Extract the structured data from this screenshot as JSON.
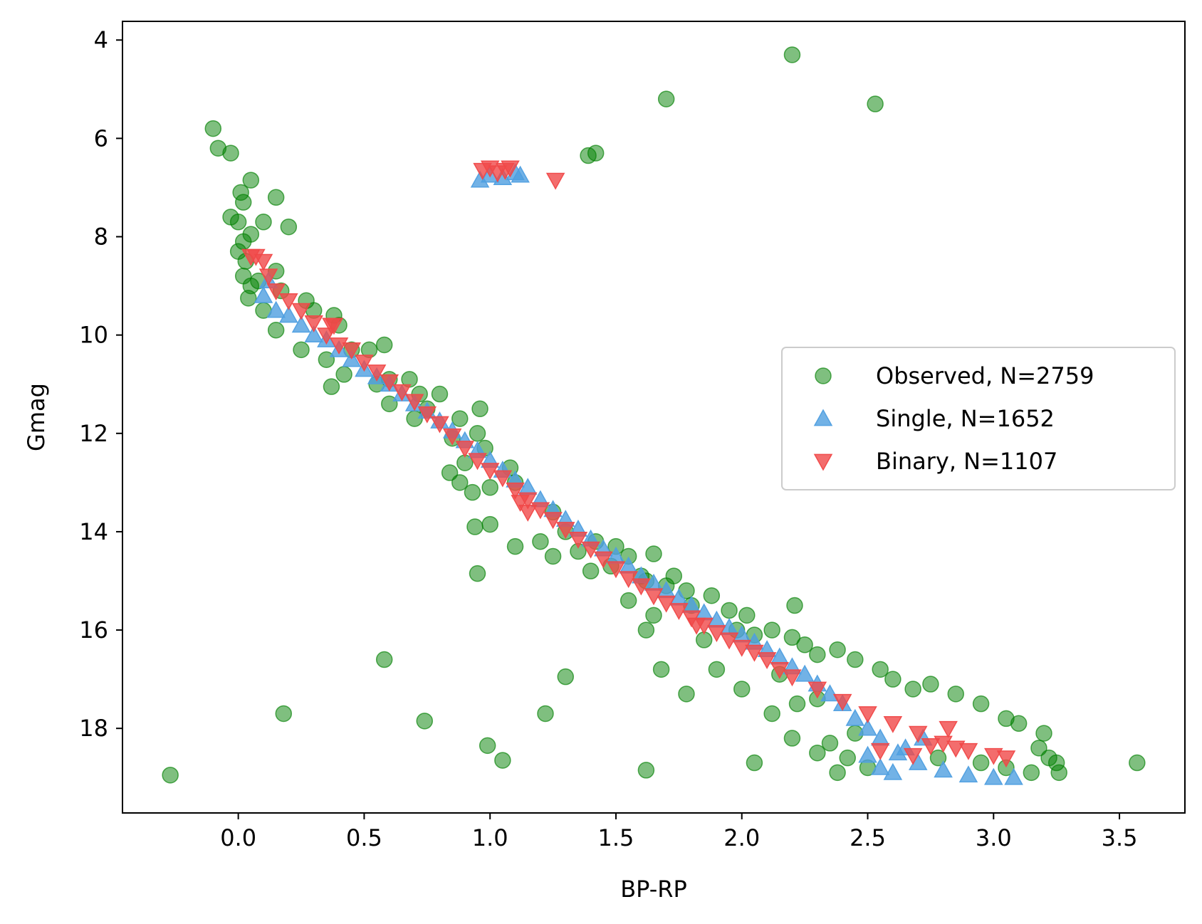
{
  "chart_data": {
    "type": "scatter",
    "title": "",
    "xlabel": "BP-RP",
    "ylabel": "Gmag",
    "xlim": [
      -0.46,
      3.76
    ],
    "ylim": [
      19.72,
      3.62
    ],
    "y_inverted": true,
    "x_ticks": [
      0.0,
      0.5,
      1.0,
      1.5,
      2.0,
      2.5,
      3.0,
      3.5
    ],
    "x_tick_labels": [
      "0.0",
      "0.5",
      "1.0",
      "1.5",
      "2.0",
      "2.5",
      "3.0",
      "3.5"
    ],
    "y_ticks": [
      4,
      6,
      8,
      10,
      12,
      14,
      16,
      18
    ],
    "y_tick_labels": [
      "4",
      "6",
      "8",
      "10",
      "12",
      "14",
      "16",
      "18"
    ],
    "grid": false,
    "legend_position": "center-right",
    "series": [
      {
        "name": "Observed, N=2759",
        "marker": "circle",
        "color": "#008000",
        "alpha": 0.5,
        "points": [
          [
            2.2,
            4.3
          ],
          [
            1.7,
            5.2
          ],
          [
            2.53,
            5.3
          ],
          [
            -0.1,
            5.8
          ],
          [
            -0.08,
            6.2
          ],
          [
            -0.03,
            6.3
          ],
          [
            1.39,
            6.35
          ],
          [
            1.42,
            6.3
          ],
          [
            0.05,
            6.85
          ],
          [
            0.01,
            7.1
          ],
          [
            0.15,
            7.2
          ],
          [
            0.02,
            7.3
          ],
          [
            -0.03,
            7.6
          ],
          [
            0.0,
            7.7
          ],
          [
            0.1,
            7.7
          ],
          [
            0.2,
            7.8
          ],
          [
            0.05,
            7.95
          ],
          [
            0.02,
            8.1
          ],
          [
            0.0,
            8.3
          ],
          [
            0.03,
            8.5
          ],
          [
            0.02,
            8.8
          ],
          [
            0.05,
            9.0
          ],
          [
            0.04,
            9.25
          ],
          [
            0.1,
            9.5
          ],
          [
            0.08,
            8.9
          ],
          [
            0.15,
            8.7
          ],
          [
            0.17,
            9.1
          ],
          [
            0.27,
            9.3
          ],
          [
            0.3,
            9.5
          ],
          [
            0.38,
            9.6
          ],
          [
            0.4,
            9.8
          ],
          [
            0.15,
            9.9
          ],
          [
            0.25,
            10.3
          ],
          [
            0.35,
            10.5
          ],
          [
            0.45,
            10.3
          ],
          [
            0.52,
            10.3
          ],
          [
            0.58,
            10.2
          ],
          [
            0.37,
            11.05
          ],
          [
            0.42,
            10.8
          ],
          [
            0.6,
            10.9
          ],
          [
            0.55,
            11.0
          ],
          [
            0.68,
            10.9
          ],
          [
            0.72,
            11.2
          ],
          [
            0.8,
            11.2
          ],
          [
            0.75,
            11.5
          ],
          [
            0.96,
            11.5
          ],
          [
            0.88,
            11.7
          ],
          [
            0.85,
            12.1
          ],
          [
            0.95,
            12.0
          ],
          [
            0.98,
            12.3
          ],
          [
            0.9,
            12.6
          ],
          [
            0.84,
            12.8
          ],
          [
            0.93,
            13.2
          ],
          [
            0.88,
            13.0
          ],
          [
            1.08,
            12.7
          ],
          [
            1.1,
            13.0
          ],
          [
            1.0,
            13.1
          ],
          [
            0.94,
            13.9
          ],
          [
            1.0,
            13.85
          ],
          [
            0.95,
            14.85
          ],
          [
            1.1,
            14.3
          ],
          [
            1.2,
            14.2
          ],
          [
            1.25,
            14.5
          ],
          [
            1.35,
            14.4
          ],
          [
            1.42,
            14.2
          ],
          [
            1.48,
            14.7
          ],
          [
            1.4,
            14.8
          ],
          [
            1.55,
            14.5
          ],
          [
            1.6,
            14.9
          ],
          [
            1.65,
            14.45
          ],
          [
            1.62,
            15.0
          ],
          [
            1.7,
            15.1
          ],
          [
            1.73,
            14.9
          ],
          [
            1.55,
            15.4
          ],
          [
            1.65,
            15.7
          ],
          [
            1.78,
            15.2
          ],
          [
            1.8,
            15.5
          ],
          [
            1.88,
            15.3
          ],
          [
            1.95,
            15.6
          ],
          [
            2.02,
            15.7
          ],
          [
            2.21,
            15.5
          ],
          [
            1.62,
            16.0
          ],
          [
            1.85,
            16.2
          ],
          [
            1.98,
            16.0
          ],
          [
            2.05,
            16.1
          ],
          [
            2.12,
            16.0
          ],
          [
            2.2,
            16.15
          ],
          [
            2.25,
            16.3
          ],
          [
            2.3,
            16.5
          ],
          [
            2.38,
            16.4
          ],
          [
            2.45,
            16.6
          ],
          [
            2.55,
            16.8
          ],
          [
            2.6,
            17.0
          ],
          [
            2.68,
            17.2
          ],
          [
            2.75,
            17.1
          ],
          [
            2.85,
            17.3
          ],
          [
            2.95,
            17.5
          ],
          [
            3.05,
            17.8
          ],
          [
            3.1,
            17.9
          ],
          [
            3.2,
            18.1
          ],
          [
            3.18,
            18.4
          ],
          [
            3.22,
            18.6
          ],
          [
            3.25,
            18.7
          ],
          [
            3.26,
            18.9
          ],
          [
            3.15,
            18.9
          ],
          [
            3.05,
            18.8
          ],
          [
            2.95,
            18.7
          ],
          [
            0.58,
            16.6
          ],
          [
            0.18,
            17.7
          ],
          [
            0.74,
            17.85
          ],
          [
            1.22,
            17.7
          ],
          [
            1.3,
            16.95
          ],
          [
            1.68,
            16.8
          ],
          [
            1.78,
            17.3
          ],
          [
            0.99,
            18.35
          ],
          [
            1.05,
            18.65
          ],
          [
            1.62,
            18.85
          ],
          [
            -0.27,
            18.95
          ],
          [
            2.05,
            18.7
          ],
          [
            2.2,
            18.2
          ],
          [
            2.22,
            17.5
          ],
          [
            2.12,
            17.7
          ],
          [
            2.0,
            17.2
          ],
          [
            2.3,
            18.5
          ],
          [
            2.35,
            18.3
          ],
          [
            2.42,
            18.6
          ],
          [
            2.38,
            18.9
          ],
          [
            2.5,
            18.8
          ],
          [
            2.45,
            18.1
          ],
          [
            2.78,
            18.6
          ],
          [
            3.57,
            18.7
          ],
          [
            1.9,
            16.8
          ],
          [
            2.3,
            17.4
          ],
          [
            2.15,
            16.9
          ],
          [
            1.5,
            14.3
          ],
          [
            1.25,
            13.6
          ],
          [
            1.3,
            14.0
          ],
          [
            0.6,
            11.4
          ],
          [
            0.7,
            11.7
          ]
        ]
      },
      {
        "name": "Single, N=1652",
        "marker": "triangle-up",
        "color": "#4f9fe0",
        "alpha": 0.8,
        "points": [
          [
            0.96,
            6.85
          ],
          [
            1.0,
            6.75
          ],
          [
            1.05,
            6.8
          ],
          [
            1.1,
            6.7
          ],
          [
            1.12,
            6.75
          ],
          [
            0.1,
            9.2
          ],
          [
            0.15,
            9.5
          ],
          [
            0.25,
            9.8
          ],
          [
            0.35,
            10.1
          ],
          [
            0.45,
            10.5
          ],
          [
            0.55,
            10.85
          ],
          [
            0.65,
            11.2
          ],
          [
            0.75,
            11.55
          ],
          [
            0.85,
            11.95
          ],
          [
            0.95,
            12.35
          ],
          [
            1.05,
            12.75
          ],
          [
            1.15,
            13.1
          ],
          [
            1.25,
            13.55
          ],
          [
            1.35,
            13.95
          ],
          [
            1.45,
            14.35
          ],
          [
            1.55,
            14.7
          ],
          [
            1.65,
            15.05
          ],
          [
            1.75,
            15.35
          ],
          [
            1.85,
            15.65
          ],
          [
            1.95,
            15.95
          ],
          [
            2.05,
            16.25
          ],
          [
            2.15,
            16.55
          ],
          [
            2.25,
            16.9
          ],
          [
            2.35,
            17.3
          ],
          [
            2.45,
            17.8
          ],
          [
            2.55,
            18.2
          ],
          [
            2.62,
            18.5
          ],
          [
            2.7,
            18.7
          ],
          [
            2.8,
            18.85
          ],
          [
            2.9,
            18.95
          ],
          [
            3.0,
            19.0
          ],
          [
            3.08,
            19.0
          ],
          [
            2.6,
            18.9
          ],
          [
            2.65,
            18.4
          ],
          [
            2.72,
            18.2
          ],
          [
            2.5,
            18.55
          ],
          [
            2.55,
            18.8
          ],
          [
            0.12,
            8.9
          ],
          [
            0.2,
            9.6
          ],
          [
            0.3,
            10.0
          ],
          [
            0.4,
            10.3
          ],
          [
            0.5,
            10.7
          ],
          [
            0.6,
            11.0
          ],
          [
            0.7,
            11.4
          ],
          [
            0.8,
            11.75
          ],
          [
            0.9,
            12.15
          ],
          [
            1.0,
            12.55
          ],
          [
            1.1,
            12.95
          ],
          [
            1.2,
            13.35
          ],
          [
            1.3,
            13.75
          ],
          [
            1.4,
            14.15
          ],
          [
            1.5,
            14.5
          ],
          [
            1.6,
            14.9
          ],
          [
            1.7,
            15.2
          ],
          [
            1.8,
            15.5
          ],
          [
            1.9,
            15.8
          ],
          [
            2.0,
            16.1
          ],
          [
            2.1,
            16.4
          ],
          [
            2.2,
            16.75
          ],
          [
            2.3,
            17.1
          ],
          [
            2.4,
            17.5
          ],
          [
            2.5,
            18.0
          ]
        ]
      },
      {
        "name": "Binary, N=1107",
        "marker": "triangle-down",
        "color": "#f04848",
        "alpha": 0.8,
        "points": [
          [
            0.97,
            6.65
          ],
          [
            1.0,
            6.6
          ],
          [
            1.03,
            6.7
          ],
          [
            1.06,
            6.65
          ],
          [
            1.08,
            6.6
          ],
          [
            1.26,
            6.85
          ],
          [
            0.07,
            8.4
          ],
          [
            0.1,
            8.5
          ],
          [
            0.12,
            8.8
          ],
          [
            0.15,
            9.1
          ],
          [
            0.2,
            9.3
          ],
          [
            0.25,
            9.5
          ],
          [
            0.3,
            9.75
          ],
          [
            0.37,
            9.8
          ],
          [
            0.35,
            10.0
          ],
          [
            0.4,
            10.2
          ],
          [
            0.45,
            10.3
          ],
          [
            0.5,
            10.55
          ],
          [
            0.55,
            10.75
          ],
          [
            0.6,
            10.95
          ],
          [
            0.65,
            11.15
          ],
          [
            0.7,
            11.35
          ],
          [
            0.75,
            11.6
          ],
          [
            0.8,
            11.8
          ],
          [
            0.85,
            12.05
          ],
          [
            0.9,
            12.3
          ],
          [
            0.95,
            12.55
          ],
          [
            1.0,
            12.75
          ],
          [
            1.05,
            12.9
          ],
          [
            1.1,
            13.15
          ],
          [
            1.12,
            13.4
          ],
          [
            1.15,
            13.35
          ],
          [
            1.2,
            13.55
          ],
          [
            1.25,
            13.75
          ],
          [
            1.3,
            13.95
          ],
          [
            1.35,
            14.15
          ],
          [
            1.4,
            14.35
          ],
          [
            1.45,
            14.55
          ],
          [
            1.5,
            14.75
          ],
          [
            1.55,
            14.95
          ],
          [
            1.6,
            15.1
          ],
          [
            1.65,
            15.3
          ],
          [
            1.7,
            15.45
          ],
          [
            1.75,
            15.6
          ],
          [
            1.8,
            15.75
          ],
          [
            1.85,
            15.9
          ],
          [
            1.9,
            16.05
          ],
          [
            1.95,
            16.2
          ],
          [
            2.0,
            16.35
          ],
          [
            2.05,
            16.45
          ],
          [
            2.1,
            16.6
          ],
          [
            2.15,
            16.8
          ],
          [
            2.2,
            16.95
          ],
          [
            2.3,
            17.2
          ],
          [
            2.4,
            17.45
          ],
          [
            2.5,
            17.7
          ],
          [
            2.6,
            17.9
          ],
          [
            2.7,
            18.1
          ],
          [
            2.8,
            18.3
          ],
          [
            2.9,
            18.45
          ],
          [
            3.0,
            18.55
          ],
          [
            3.05,
            18.6
          ],
          [
            2.55,
            18.45
          ],
          [
            2.68,
            18.55
          ],
          [
            2.75,
            18.35
          ],
          [
            2.85,
            18.4
          ],
          [
            2.82,
            18.0
          ],
          [
            1.82,
            15.9
          ],
          [
            1.15,
            13.6
          ],
          [
            0.38,
            9.8
          ],
          [
            0.05,
            8.4
          ]
        ]
      }
    ]
  }
}
